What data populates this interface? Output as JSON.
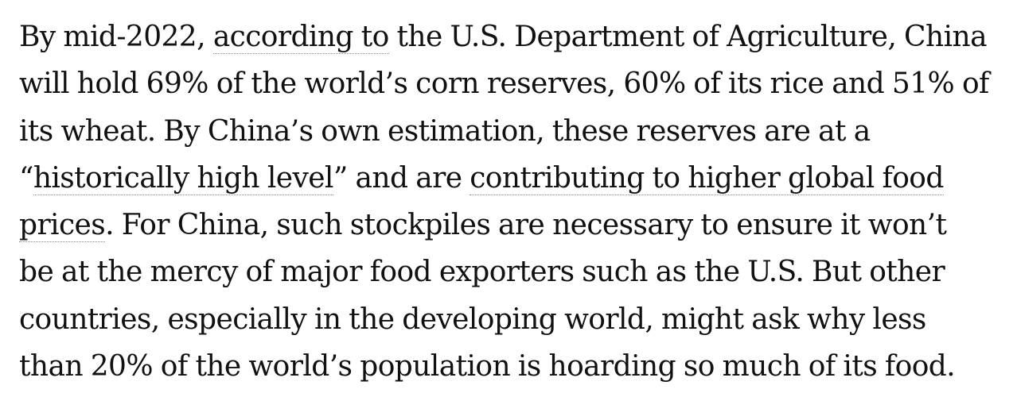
{
  "article": {
    "lines": [
      {
        "before": "By mid-2022, ",
        "link": "according to",
        "after": " the U.S. Department of Agriculture, China"
      },
      {
        "text": "will hold 69% of the world’s corn reserves, 60% of its rice and 51% of"
      },
      {
        "text": "its wheat. By China’s own estimation, these reserves are at a"
      },
      {
        "before": "“",
        "link": "historically high level",
        "middle": "” and are ",
        "link2": "contributing to higher global food"
      },
      {
        "link": "prices",
        "after": ". For China, such stockpiles are necessary to ensure it won’t"
      },
      {
        "text": "be at the mercy of major food exporters such as the U.S. But other"
      },
      {
        "text": "countries, especially in the developing world, might ask why less"
      },
      {
        "text": "than 20% of the world’s population is hoarding so much of its food."
      }
    ]
  }
}
